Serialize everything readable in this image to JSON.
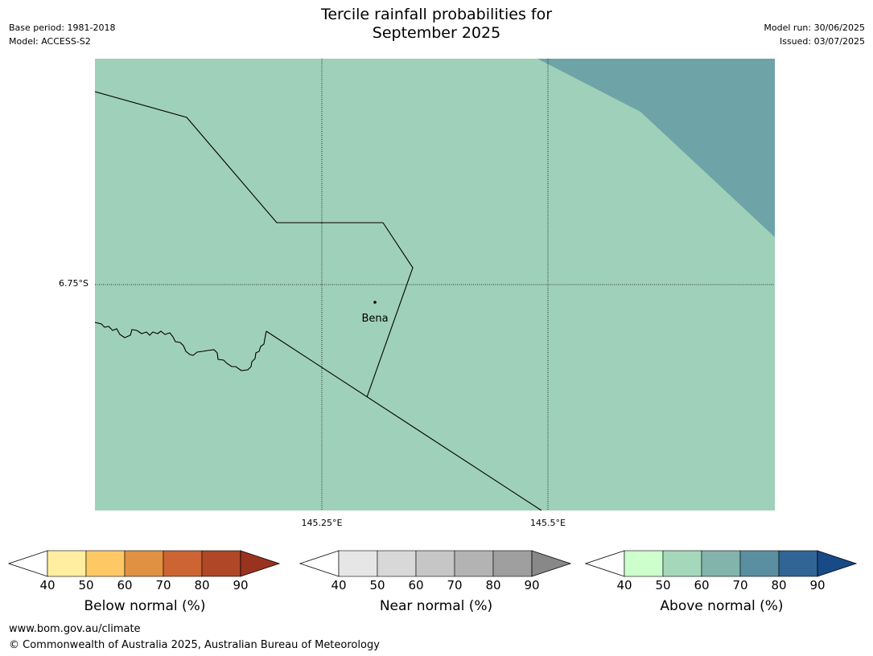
{
  "header": {
    "title_line1": "Tercile rainfall probabilities for",
    "title_line2": "September 2025",
    "base_period": "Base period: 1981-2018",
    "model": "Model: ACCESS-S2",
    "model_run": "Model run: 30/06/2025",
    "issued": "Issued: 03/07/2025"
  },
  "map": {
    "lat_label": "6.75°S",
    "lon_labels": [
      "145.25°E",
      "145.5°E"
    ],
    "place": "Bena",
    "colors": {
      "above_50_60": "#9fd0b9",
      "above_60_70": "#6ea3a7",
      "boundary": "#000000",
      "gridline": "#000000"
    }
  },
  "colorbars": [
    {
      "label": "Below normal (%)",
      "ticks": [
        "40",
        "50",
        "60",
        "70",
        "80",
        "90"
      ],
      "colors": [
        "#ffffff",
        "#ffeda0",
        "#fec965",
        "#e09142",
        "#cc6433",
        "#b04726",
        "#9a3220"
      ]
    },
    {
      "label": "Near normal (%)",
      "ticks": [
        "40",
        "50",
        "60",
        "70",
        "80",
        "90"
      ],
      "colors": [
        "#ffffff",
        "#e6e6e6",
        "#d8d8d8",
        "#c6c6c6",
        "#b3b3b3",
        "#9f9f9f",
        "#888888"
      ]
    },
    {
      "label": "Above normal (%)",
      "ticks": [
        "40",
        "50",
        "60",
        "70",
        "80",
        "90"
      ],
      "colors": [
        "#ffffff",
        "#ccffcc",
        "#a5d7bb",
        "#82b4ac",
        "#5a8fa0",
        "#306596",
        "#174a87"
      ]
    }
  ],
  "footer": {
    "url": "www.bom.gov.au/climate",
    "copyright": "© Commonwealth of Australia 2025, Australian Bureau of Meteorology"
  }
}
